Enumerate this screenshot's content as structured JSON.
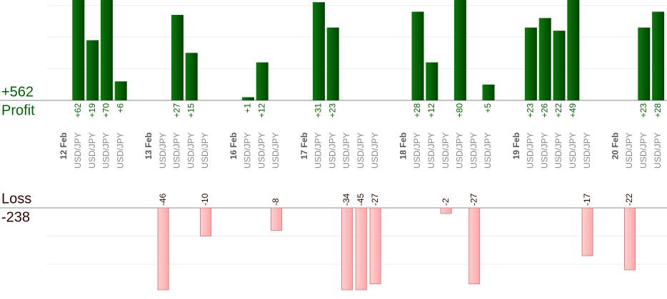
{
  "profit": {
    "label": "Profit",
    "total": "+562",
    "ylim": [
      0,
      31.7
    ],
    "grid": [
      10,
      20,
      30
    ]
  },
  "loss": {
    "label": "Loss",
    "total": "-238",
    "ylim": [
      0,
      -29.1
    ],
    "grid": [
      -10,
      -20
    ]
  },
  "days": [
    {
      "date": "12 Feb",
      "trades": [
        {
          "pair": "USD/JPY",
          "value": 62,
          "label": "+62"
        },
        {
          "pair": "USD/JPY",
          "value": 19,
          "label": "+19"
        },
        {
          "pair": "USD/JPY",
          "value": 70,
          "label": "+70"
        },
        {
          "pair": "USD/JPY",
          "value": 6,
          "label": "+6"
        }
      ]
    },
    {
      "date": "13 Feb",
      "trades": [
        {
          "pair": "USD/JPY",
          "value": -46,
          "label": "-46"
        },
        {
          "pair": "USD/JPY",
          "value": 27,
          "label": "+27"
        },
        {
          "pair": "USD/JPY",
          "value": 15,
          "label": "+15"
        },
        {
          "pair": "USD/JPY",
          "value": -10,
          "label": "-10"
        }
      ]
    },
    {
      "date": "16 Feb",
      "trades": [
        {
          "pair": "USD/JPY",
          "value": 1,
          "label": "+1"
        },
        {
          "pair": "USD/JPY",
          "value": 12,
          "label": "+12"
        },
        {
          "pair": "USD/JPY",
          "value": -8,
          "label": "-8"
        }
      ]
    },
    {
      "date": "17 Feb",
      "trades": [
        {
          "pair": "USD/JPY",
          "value": 31,
          "label": "+31"
        },
        {
          "pair": "USD/JPY",
          "value": 23,
          "label": "+23"
        },
        {
          "pair": "USD/JPY",
          "value": -34,
          "label": "-34"
        },
        {
          "pair": "USD/JPY",
          "value": -45,
          "label": "-45"
        },
        {
          "pair": "USD/JPY",
          "value": -27,
          "label": "-27"
        }
      ]
    },
    {
      "date": "18 Feb",
      "trades": [
        {
          "pair": "USD/JPY",
          "value": 28,
          "label": "+28"
        },
        {
          "pair": "USD/JPY",
          "value": 12,
          "label": "+12"
        },
        {
          "pair": "USD/JPY",
          "value": -2,
          "label": "-2"
        },
        {
          "pair": "USD/JPY",
          "value": 80,
          "label": "+80"
        },
        {
          "pair": "USD/JPY",
          "value": -27,
          "label": "-27"
        },
        {
          "pair": "USD/JPY",
          "value": 5,
          "label": "+5"
        }
      ]
    },
    {
      "date": "19 Feb",
      "trades": [
        {
          "pair": "USD/JPY",
          "value": 23,
          "label": "+23"
        },
        {
          "pair": "USD/JPY",
          "value": 26,
          "label": "+26"
        },
        {
          "pair": "USD/JPY",
          "value": 22,
          "label": "+22"
        },
        {
          "pair": "USD/JPY",
          "value": 49,
          "label": "+49"
        },
        {
          "pair": "USD/JPY",
          "value": -17,
          "label": "-17"
        }
      ]
    },
    {
      "date": "20 Feb",
      "trades": [
        {
          "pair": "USD/JPY",
          "value": -22,
          "label": "-22"
        },
        {
          "pair": "USD/JPY",
          "value": 23,
          "label": "+23"
        },
        {
          "pair": "USD/JPY",
          "value": 28,
          "label": "+28"
        }
      ]
    }
  ]
}
